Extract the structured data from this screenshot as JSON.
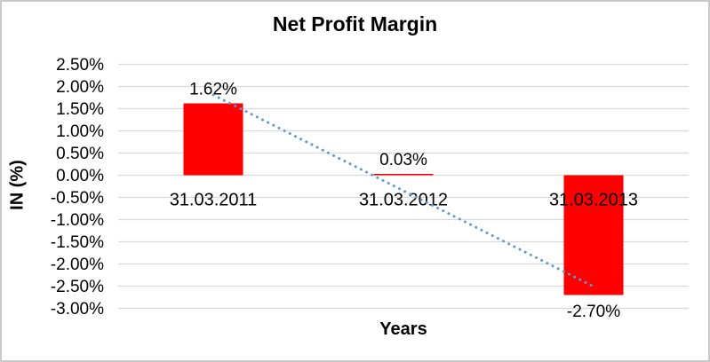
{
  "chart_data": {
    "type": "bar",
    "title": "Net Profit Margin",
    "xlabel": "Years",
    "ylabel": "IN (%)",
    "categories": [
      "31.03.2011",
      "31.03.2012",
      "31.03.2013"
    ],
    "values": [
      1.62,
      0.03,
      -2.7
    ],
    "data_labels": [
      "1.62%",
      "0.03%",
      "-2.70%"
    ],
    "ylim": [
      -3.0,
      2.5
    ],
    "ytick_step": 0.5,
    "ytick_labels": [
      "2.50%",
      "2.00%",
      "1.50%",
      "1.00%",
      "0.50%",
      "0.00%",
      "-0.50%",
      "-1.00%",
      "-1.50%",
      "-2.00%",
      "-2.50%",
      "-3.00%"
    ],
    "grid": true,
    "legend": "none",
    "bar_color": "#FF0000",
    "gridline_color": "#D9D9D9",
    "text_color": "#000000",
    "trendline": {
      "type": "linear",
      "style": "dotted",
      "color": "#5B9BD5"
    }
  }
}
